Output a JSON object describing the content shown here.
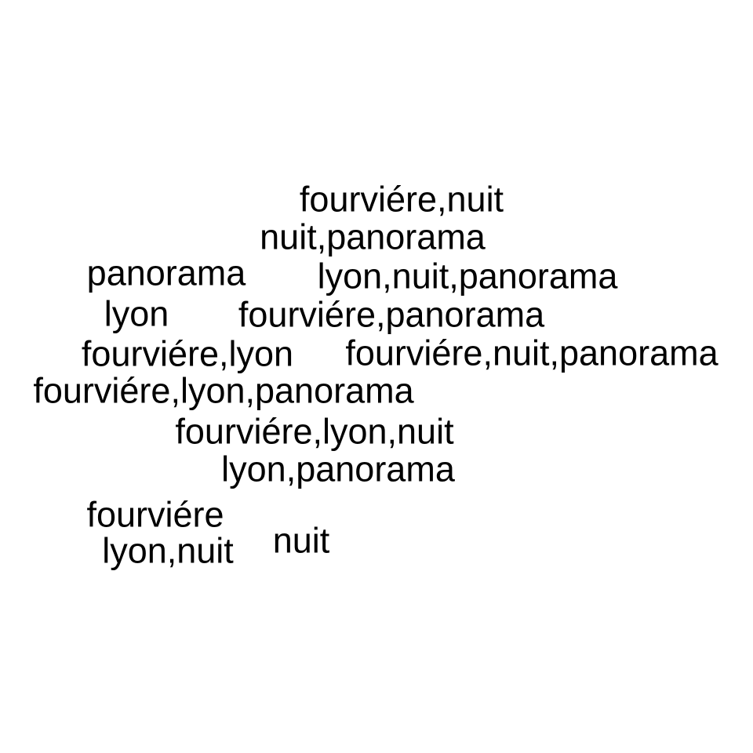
{
  "word_cloud": {
    "words": [
      {
        "text": "fourviére,nuit"
      },
      {
        "text": "nuit,panorama"
      },
      {
        "text": "panorama"
      },
      {
        "text": "lyon,nuit,panorama"
      },
      {
        "text": "lyon"
      },
      {
        "text": "fourviére,panorama"
      },
      {
        "text": "fourviére,lyon"
      },
      {
        "text": "fourviére,nuit,panorama"
      },
      {
        "text": "fourviére,lyon,panorama"
      },
      {
        "text": "fourviére,lyon,nuit"
      },
      {
        "text": "lyon,panorama"
      },
      {
        "text": "fourviére"
      },
      {
        "text": "nuit"
      },
      {
        "text": "lyon,nuit"
      }
    ],
    "text_color": "#000000",
    "background_color": "#ffffff"
  }
}
